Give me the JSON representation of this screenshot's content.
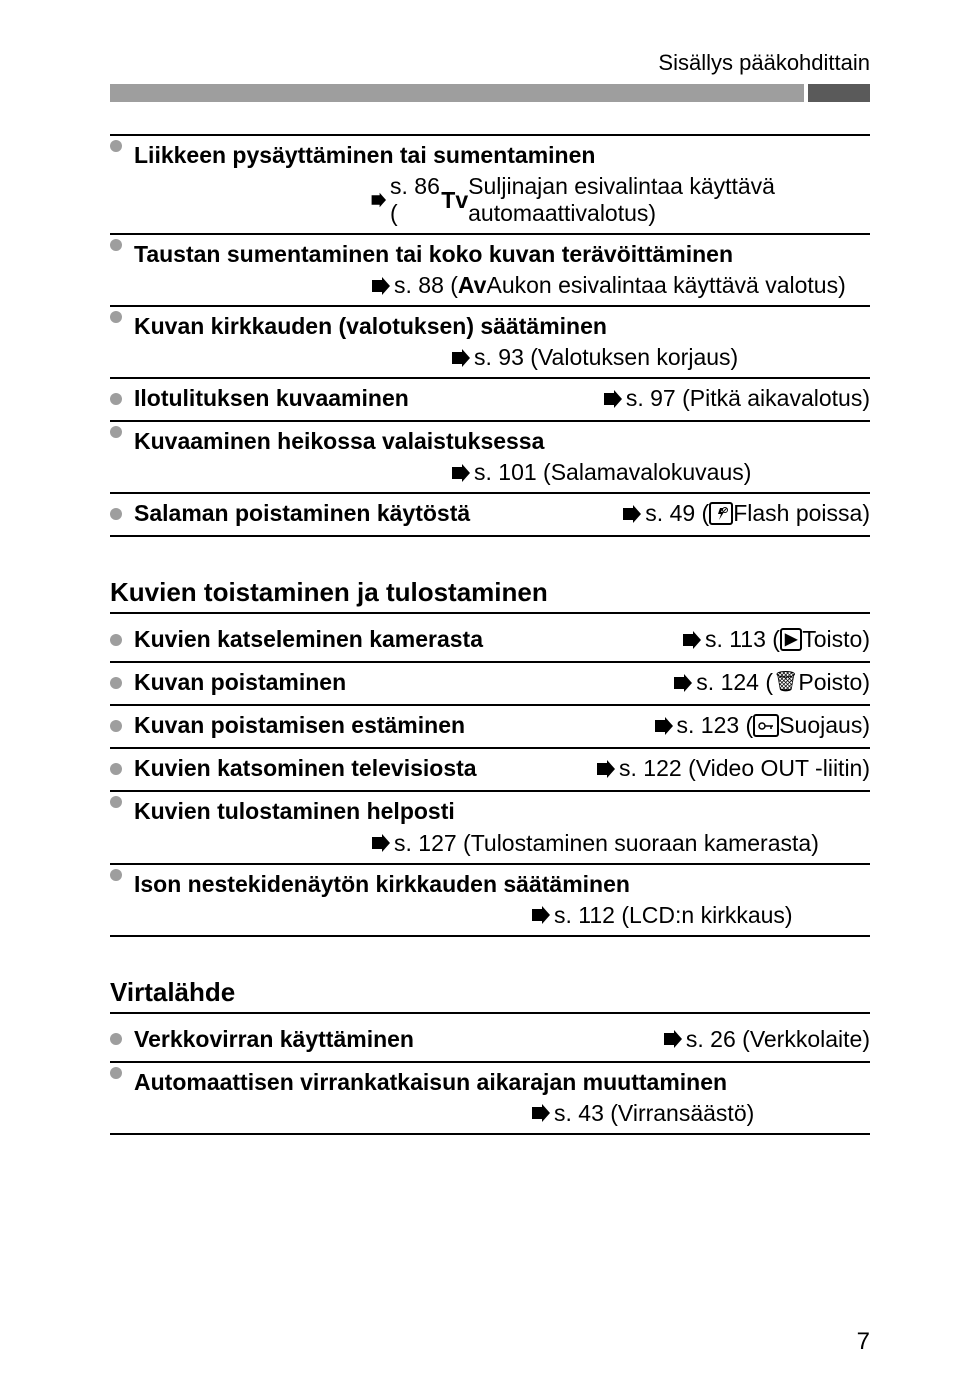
{
  "header": "Sisällys pääkohdittain",
  "rows1": [
    {
      "title": "Liikkeen pysäyttäminen tai sumentaminen",
      "ref": "s. 86 (Tv Suljinajan esivalintaa käyttävä automaattivalotus)",
      "refClass": "ref-indent"
    },
    {
      "title": "Taustan sumentaminen tai koko kuvan terävöittäminen",
      "ref": "s. 88 (Av Aukon esivalintaa käyttävä valotus)",
      "refClass": "ref-indent"
    },
    {
      "title": "Kuvan kirkkauden (valotuksen) säätäminen",
      "ref": "s. 93 (Valotuksen korjaus)",
      "refClass": "ref-indent-wide"
    },
    {
      "title": "Ilotulituksen kuvaaminen",
      "refInline": "s. 97 (Pitkä aikavalotus)"
    },
    {
      "title": "Kuvaaminen heikossa valaistuksessa",
      "ref": "s. 101 (Salamavalokuvaus)",
      "refClass": "ref-indent-wide"
    },
    {
      "title": "Salaman poistaminen käytöstä",
      "refInline": "s. 49 (🚫 Flash poissa)",
      "iconFlash": true
    }
  ],
  "section2Title": "Kuvien toistaminen ja tulostaminen",
  "rows2": [
    {
      "title": "Kuvien katseleminen kamerasta",
      "refInline": "s. 113 (▶ Toisto)",
      "iconPlay": true
    },
    {
      "title": "Kuvan poistaminen",
      "refInline": "s. 124 (🗑 Poisto)",
      "iconTrash": true
    },
    {
      "title": "Kuvan poistamisen estäminen",
      "refInline": "s. 123 (🔒 Suojaus)",
      "iconKey": true
    },
    {
      "title": "Kuvien katsominen televisiosta",
      "refInline": "s. 122 (Video OUT -liitin)"
    },
    {
      "title": "Kuvien tulostaminen helposti",
      "ref": "s. 127 (Tulostaminen suoraan kamerasta)",
      "refClass": "ref-indent"
    },
    {
      "title": "Ison nestekidenäytön kirkkauden säätäminen",
      "ref": "s. 112 (LCD:n kirkkaus)",
      "refClass": "ref-right"
    }
  ],
  "section3Title": "Virtalähde",
  "rows3": [
    {
      "title": "Verkkovirran käyttäminen",
      "refInline": "s. 26 (Verkkolaite)",
      "gap": true
    },
    {
      "title": "Automaattisen virrankatkaisun aikarajan muuttaminen",
      "ref": "s. 43 (Virransäästö)",
      "refClass": "ref-right"
    }
  ],
  "pageNum": "7",
  "modeTv": "Tv",
  "modeAv": "Av"
}
